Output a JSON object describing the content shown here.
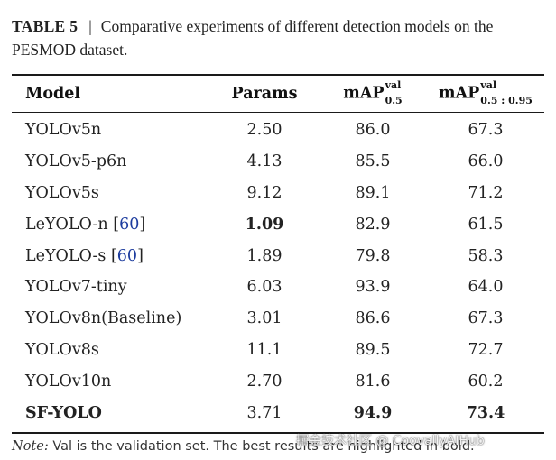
{
  "caption": {
    "label": "TABLE 5",
    "separator": "|",
    "text": "Comparative experiments of different detection models on the PESMOD dataset."
  },
  "table": {
    "headers": {
      "model": "Model",
      "params": "Params",
      "map50_base": "mAP",
      "map50_sup": "val",
      "map50_sub": "0.5",
      "map5095_base": "mAP",
      "map5095_sup": "val",
      "map5095_sub": "0.5 : 0.95"
    },
    "rows": [
      {
        "model": "YOLOv5n",
        "ref": "",
        "params": "2.50",
        "map50": "86.0",
        "map5095": "67.3"
      },
      {
        "model": "YOLOv5-p6n",
        "ref": "",
        "params": "4.13",
        "map50": "85.5",
        "map5095": "66.0"
      },
      {
        "model": "YOLOv5s",
        "ref": "",
        "params": "9.12",
        "map50": "89.1",
        "map5095": "71.2"
      },
      {
        "model": "LeYOLO-n",
        "ref": "60",
        "params": "1.09",
        "map50": "82.9",
        "map5095": "61.5"
      },
      {
        "model": "LeYOLO-s",
        "ref": "60",
        "params": "1.89",
        "map50": "79.8",
        "map5095": "58.3"
      },
      {
        "model": "YOLOv7-tiny",
        "ref": "",
        "params": "6.03",
        "map50": "93.9",
        "map5095": "64.0"
      },
      {
        "model": "YOLOv8n(Baseline)",
        "ref": "",
        "params": "3.01",
        "map50": "86.6",
        "map5095": "67.3"
      },
      {
        "model": "YOLOv8s",
        "ref": "",
        "params": "11.1",
        "map50": "89.5",
        "map5095": "72.7"
      },
      {
        "model": "YOLOv10n",
        "ref": "",
        "params": "2.70",
        "map50": "81.6",
        "map5095": "60.2"
      },
      {
        "model": "SF-YOLO",
        "ref": "",
        "params": "3.71",
        "map50": "94.9",
        "map5095": "73.4"
      }
    ]
  },
  "note": {
    "label": "Note:",
    "text": "Val is the validation set. The best results are highlighted in bold."
  },
  "watermark": "掘金技术社区 @ CoovallyAIHub"
}
